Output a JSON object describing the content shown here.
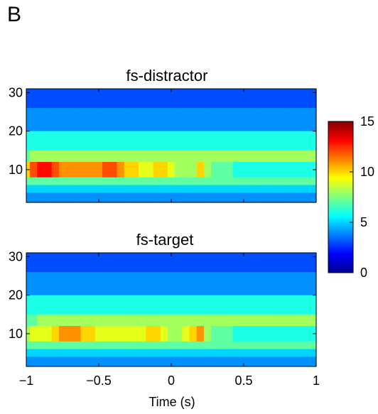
{
  "panel_label": "B",
  "chart_data": [
    {
      "type": "heatmap",
      "title": "fs-distractor",
      "xlabel": "",
      "ylabel": "",
      "xlim": [
        -1,
        1
      ],
      "ylim": [
        1.5,
        31
      ],
      "yticks": [
        "10",
        "20",
        "30"
      ],
      "xticks": [],
      "time": [
        -1.0,
        -0.95,
        -0.9,
        -0.85,
        -0.8,
        -0.75,
        -0.7,
        -0.65,
        -0.6,
        -0.55,
        -0.5,
        -0.45,
        -0.4,
        -0.35,
        -0.3,
        -0.25,
        -0.2,
        -0.15,
        -0.1,
        -0.05,
        0.0,
        0.05,
        0.1,
        0.15,
        0.2,
        0.25,
        0.3,
        0.35,
        0.4,
        0.45,
        0.5,
        0.55,
        0.6,
        0.65,
        0.7,
        0.75,
        0.8,
        0.85,
        0.9,
        0.95,
        1.0
      ],
      "frequency_bands": [
        {
          "band": "26-31 Hz",
          "values": [
            3,
            3,
            3,
            3,
            3,
            3,
            3,
            3,
            3,
            3,
            3,
            3,
            3,
            3,
            3,
            3,
            3,
            3,
            3,
            3,
            3,
            3,
            3,
            3,
            3,
            3,
            3,
            3,
            3,
            3,
            3,
            3,
            3,
            3,
            3,
            3,
            3,
            3,
            3,
            3,
            3
          ]
        },
        {
          "band": "20-26 Hz",
          "values": [
            4,
            4,
            4,
            4,
            4,
            4,
            4,
            4,
            4,
            4,
            4,
            4,
            4,
            4,
            4,
            4,
            4,
            4,
            4,
            4,
            4,
            4,
            4,
            4,
            4,
            4,
            4,
            4,
            4,
            4,
            4,
            4,
            4,
            4,
            4,
            4,
            4,
            4,
            4,
            4,
            4
          ]
        },
        {
          "band": "15-20 Hz",
          "values": [
            6,
            6,
            6,
            6,
            6,
            6,
            6,
            6,
            6,
            6,
            6,
            6,
            6,
            6,
            6,
            6,
            6,
            6,
            6,
            6,
            6,
            6,
            6,
            6,
            6,
            6,
            6,
            6,
            6,
            6,
            6,
            6,
            6,
            6,
            6,
            6,
            6,
            6,
            6,
            6,
            6
          ]
        },
        {
          "band": "12-15 Hz",
          "values": [
            7,
            8,
            8,
            8,
            8,
            8,
            8,
            8,
            8,
            8,
            8,
            8,
            8,
            8,
            8,
            8,
            8,
            8,
            8,
            8,
            8,
            8,
            8,
            8,
            8,
            8,
            8,
            8,
            8,
            8,
            8,
            8,
            8,
            8,
            8,
            8,
            8,
            8,
            8,
            8,
            8
          ]
        },
        {
          "band": "8-12 Hz",
          "values": [
            10,
            12,
            13,
            13,
            12,
            11,
            11,
            11,
            11,
            11,
            11,
            12,
            12,
            11,
            10,
            10,
            9,
            9,
            10,
            10,
            9,
            8,
            8,
            8,
            10,
            8,
            7,
            7,
            7,
            6,
            6,
            6,
            6,
            6,
            6,
            6,
            6,
            6,
            6,
            6,
            6
          ]
        },
        {
          "band": "6-8 Hz",
          "values": [
            7,
            7,
            7,
            7,
            7,
            7,
            7,
            7,
            7,
            7,
            7,
            7,
            7,
            7,
            7,
            7,
            7,
            7,
            7,
            7,
            7,
            7,
            7,
            7,
            7,
            7,
            7,
            7,
            7,
            7,
            7,
            7,
            7,
            7,
            7,
            7,
            7,
            7,
            7,
            7,
            7
          ]
        },
        {
          "band": "4-6 Hz",
          "values": [
            5,
            5,
            5,
            5,
            5,
            5,
            5,
            5,
            5,
            5,
            5,
            5,
            5,
            5,
            5,
            5,
            5,
            5,
            5,
            5,
            5,
            5,
            5,
            5,
            5,
            5,
            5,
            5,
            5,
            5,
            5,
            5,
            5,
            5,
            5,
            5,
            5,
            5,
            5,
            5,
            5
          ]
        },
        {
          "band": "2-4 Hz",
          "values": [
            4,
            4,
            4,
            4,
            4,
            4,
            4,
            4,
            4,
            4,
            4,
            4,
            4,
            4,
            4,
            4,
            4,
            4,
            4,
            4,
            4,
            4,
            4,
            4,
            4,
            4,
            4,
            4,
            4,
            4,
            4,
            4,
            4,
            4,
            4,
            4,
            4,
            4,
            4,
            4,
            4
          ]
        }
      ]
    },
    {
      "type": "heatmap",
      "title": "fs-target",
      "xlabel": "Time (s)",
      "ylabel": "",
      "xlim": [
        -1,
        1
      ],
      "ylim": [
        1.5,
        31
      ],
      "yticks": [
        "10",
        "20",
        "30"
      ],
      "xticks": [
        "−1",
        "−0.5",
        "0",
        "0.5",
        "1"
      ],
      "time": [
        -1.0,
        -0.95,
        -0.9,
        -0.85,
        -0.8,
        -0.75,
        -0.7,
        -0.65,
        -0.6,
        -0.55,
        -0.5,
        -0.45,
        -0.4,
        -0.35,
        -0.3,
        -0.25,
        -0.2,
        -0.15,
        -0.1,
        -0.05,
        0.0,
        0.05,
        0.1,
        0.15,
        0.2,
        0.25,
        0.3,
        0.35,
        0.4,
        0.45,
        0.5,
        0.55,
        0.6,
        0.65,
        0.7,
        0.75,
        0.8,
        0.85,
        0.9,
        0.95,
        1.0
      ],
      "frequency_bands": [
        {
          "band": "26-31 Hz",
          "values": [
            3,
            3,
            3,
            3,
            3,
            3,
            3,
            3,
            3,
            3,
            3,
            3,
            3,
            3,
            3,
            3,
            3,
            3,
            3,
            3,
            3,
            3,
            3,
            3,
            3,
            3,
            3,
            3,
            3,
            3,
            3,
            3,
            3,
            3,
            3,
            3,
            3,
            3,
            3,
            3,
            3
          ]
        },
        {
          "band": "20-26 Hz",
          "values": [
            4,
            4,
            4,
            4,
            4,
            4,
            4,
            4,
            4,
            4,
            4,
            4,
            4,
            4,
            4,
            4,
            4,
            4,
            4,
            4,
            4,
            4,
            4,
            4,
            4,
            4,
            4,
            4,
            4,
            4,
            4,
            4,
            4,
            4,
            4,
            4,
            4,
            4,
            4,
            4,
            4
          ]
        },
        {
          "band": "15-20 Hz",
          "values": [
            6,
            6,
            6,
            6,
            6,
            6,
            6,
            6,
            6,
            6,
            6,
            6,
            6,
            6,
            6,
            6,
            6,
            6,
            6,
            6,
            6,
            6,
            6,
            6,
            6,
            6,
            6,
            6,
            6,
            6,
            6,
            6,
            6,
            6,
            6,
            6,
            6,
            6,
            6,
            6,
            6
          ]
        },
        {
          "band": "12-15 Hz",
          "values": [
            7,
            7,
            8,
            8,
            8,
            8,
            8,
            8,
            8,
            8,
            8,
            8,
            8,
            8,
            8,
            8,
            8,
            8,
            8,
            8,
            8,
            8,
            8,
            8,
            8,
            8,
            8,
            8,
            8,
            8,
            8,
            8,
            8,
            8,
            8,
            8,
            8,
            8,
            8,
            8,
            8
          ]
        },
        {
          "band": "8-12 Hz",
          "values": [
            8,
            9,
            9,
            9,
            10,
            11,
            11,
            11,
            10,
            10,
            9,
            9,
            9,
            9,
            9,
            9,
            9,
            10,
            10,
            9,
            8,
            8,
            9,
            10,
            11,
            8,
            7,
            7,
            7,
            6,
            6,
            6,
            6,
            6,
            6,
            6,
            6,
            6,
            6,
            6,
            6
          ]
        },
        {
          "band": "6-8 Hz",
          "values": [
            7,
            7,
            7,
            7,
            7,
            7,
            7,
            7,
            7,
            7,
            7,
            7,
            7,
            7,
            7,
            7,
            7,
            7,
            7,
            7,
            7,
            7,
            7,
            7,
            7,
            7,
            7,
            7,
            7,
            7,
            7,
            7,
            7,
            7,
            7,
            7,
            7,
            7,
            7,
            7,
            7
          ]
        },
        {
          "band": "4-6 Hz",
          "values": [
            5,
            5,
            5,
            5,
            5,
            5,
            5,
            5,
            5,
            5,
            5,
            5,
            5,
            5,
            5,
            5,
            5,
            5,
            5,
            5,
            5,
            5,
            5,
            5,
            5,
            5,
            5,
            5,
            5,
            5,
            5,
            5,
            5,
            5,
            5,
            5,
            5,
            5,
            5,
            5,
            5
          ]
        },
        {
          "band": "2-4 Hz",
          "values": [
            4,
            4,
            4,
            4,
            4,
            4,
            4,
            4,
            4,
            4,
            4,
            4,
            4,
            4,
            4,
            4,
            4,
            4,
            4,
            4,
            4,
            4,
            4,
            4,
            4,
            4,
            4,
            4,
            4,
            4,
            4,
            4,
            4,
            4,
            4,
            4,
            4,
            4,
            4,
            4,
            4
          ]
        }
      ]
    }
  ],
  "colorbar": {
    "colormap": "jet",
    "range": [
      0,
      15
    ],
    "ticks": [
      "0",
      "5",
      "10",
      "15"
    ]
  }
}
